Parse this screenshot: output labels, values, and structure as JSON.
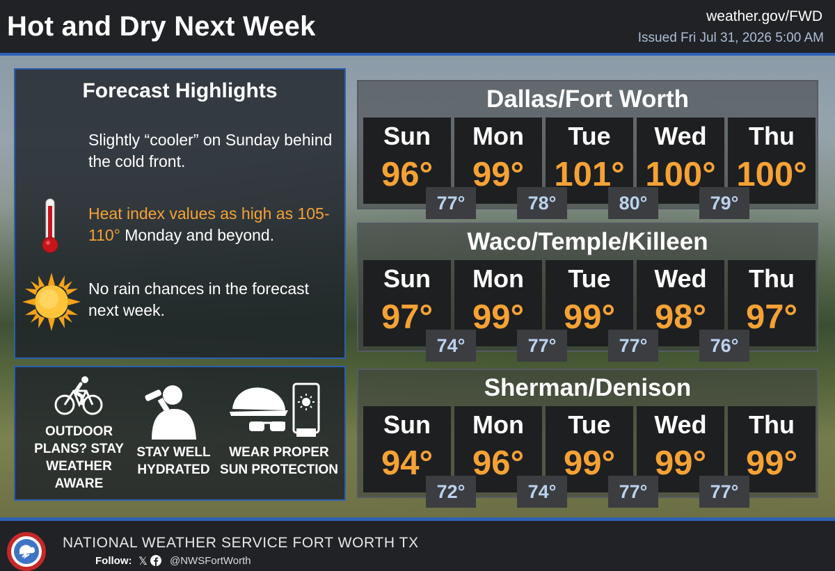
{
  "header": {
    "title": "Hot and Dry Next Week",
    "website": "weather.gov/FWD",
    "issued": "Issued Fri Jul 31, 2026 5:00 AM"
  },
  "highlights": {
    "title": "Forecast Highlights",
    "item1": "Slightly “cooler” on Sunday behind the cold front.",
    "item2_orange": "Heat index values as high as 105-110°",
    "item2_rest": " Monday and beyond.",
    "item3": "No rain chances in the forecast next week."
  },
  "tips": {
    "outdoor": "OUTDOOR PLANS? STAY WEATHER AWARE",
    "hydrated": "STAY WELL HYDRATED",
    "sun": "WEAR PROPER SUN PROTECTION"
  },
  "cities": [
    {
      "name": "Dallas/Fort Worth",
      "days": [
        {
          "day": "Sun",
          "high": "96°"
        },
        {
          "day": "Mon",
          "high": "99°"
        },
        {
          "day": "Tue",
          "high": "101°"
        },
        {
          "day": "Wed",
          "high": "100°"
        },
        {
          "day": "Thu",
          "high": "100°"
        }
      ],
      "lows": [
        "77°",
        "78°",
        "80°",
        "79°"
      ]
    },
    {
      "name": "Waco/Temple/Killeen",
      "days": [
        {
          "day": "Sun",
          "high": "97°"
        },
        {
          "day": "Mon",
          "high": "99°"
        },
        {
          "day": "Tue",
          "high": "99°"
        },
        {
          "day": "Wed",
          "high": "98°"
        },
        {
          "day": "Thu",
          "high": "97°"
        }
      ],
      "lows": [
        "74°",
        "77°",
        "77°",
        "76°"
      ]
    },
    {
      "name": "Sherman/Denison",
      "days": [
        {
          "day": "Sun",
          "high": "94°"
        },
        {
          "day": "Mon",
          "high": "96°"
        },
        {
          "day": "Tue",
          "high": "99°"
        },
        {
          "day": "Wed",
          "high": "99°"
        },
        {
          "day": "Thu",
          "high": "99°"
        }
      ],
      "lows": [
        "72°",
        "74°",
        "77°",
        "77°"
      ]
    }
  ],
  "footer": {
    "org": "NATIONAL WEATHER SERVICE FORT WORTH TX",
    "follow": "Follow:",
    "handle": "@NWSFortWorth",
    "logo_text": "NATIONAL WEATHER SERVICE"
  },
  "colors": {
    "accent_orange": "#f5a235",
    "low_temp_blue": "#bcd2ee",
    "border_blue": "#2d62b5"
  }
}
